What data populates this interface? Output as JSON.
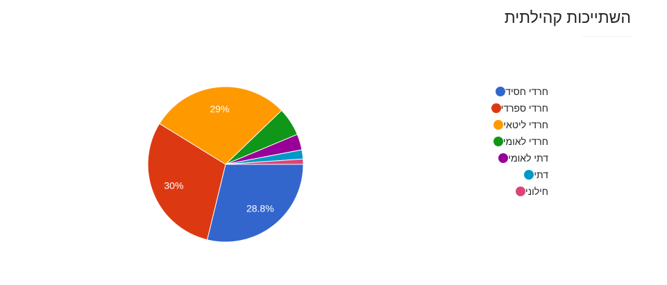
{
  "chart_data": {
    "type": "pie",
    "title": "השתייכות קהילתית",
    "legend_position": "right",
    "slices": [
      {
        "label": "חרדי חסיד",
        "value": 28.8,
        "display": "28.8%",
        "color": "#3366cc"
      },
      {
        "label": "חרדי ספרדי",
        "value": 30.0,
        "display": "30%",
        "color": "#dc3912"
      },
      {
        "label": "חרדי ליטאי",
        "value": 29.0,
        "display": "29%",
        "color": "#ff9900"
      },
      {
        "label": "חרדי לאומי",
        "value": 5.9,
        "display": "",
        "color": "#109618"
      },
      {
        "label": "דתי לאומי",
        "value": 3.3,
        "display": "",
        "color": "#990099"
      },
      {
        "label": "דתי",
        "value": 1.9,
        "display": "",
        "color": "#0099c6"
      },
      {
        "label": "חילוני",
        "value": 1.1,
        "display": "",
        "color": "#dd4477"
      }
    ]
  }
}
